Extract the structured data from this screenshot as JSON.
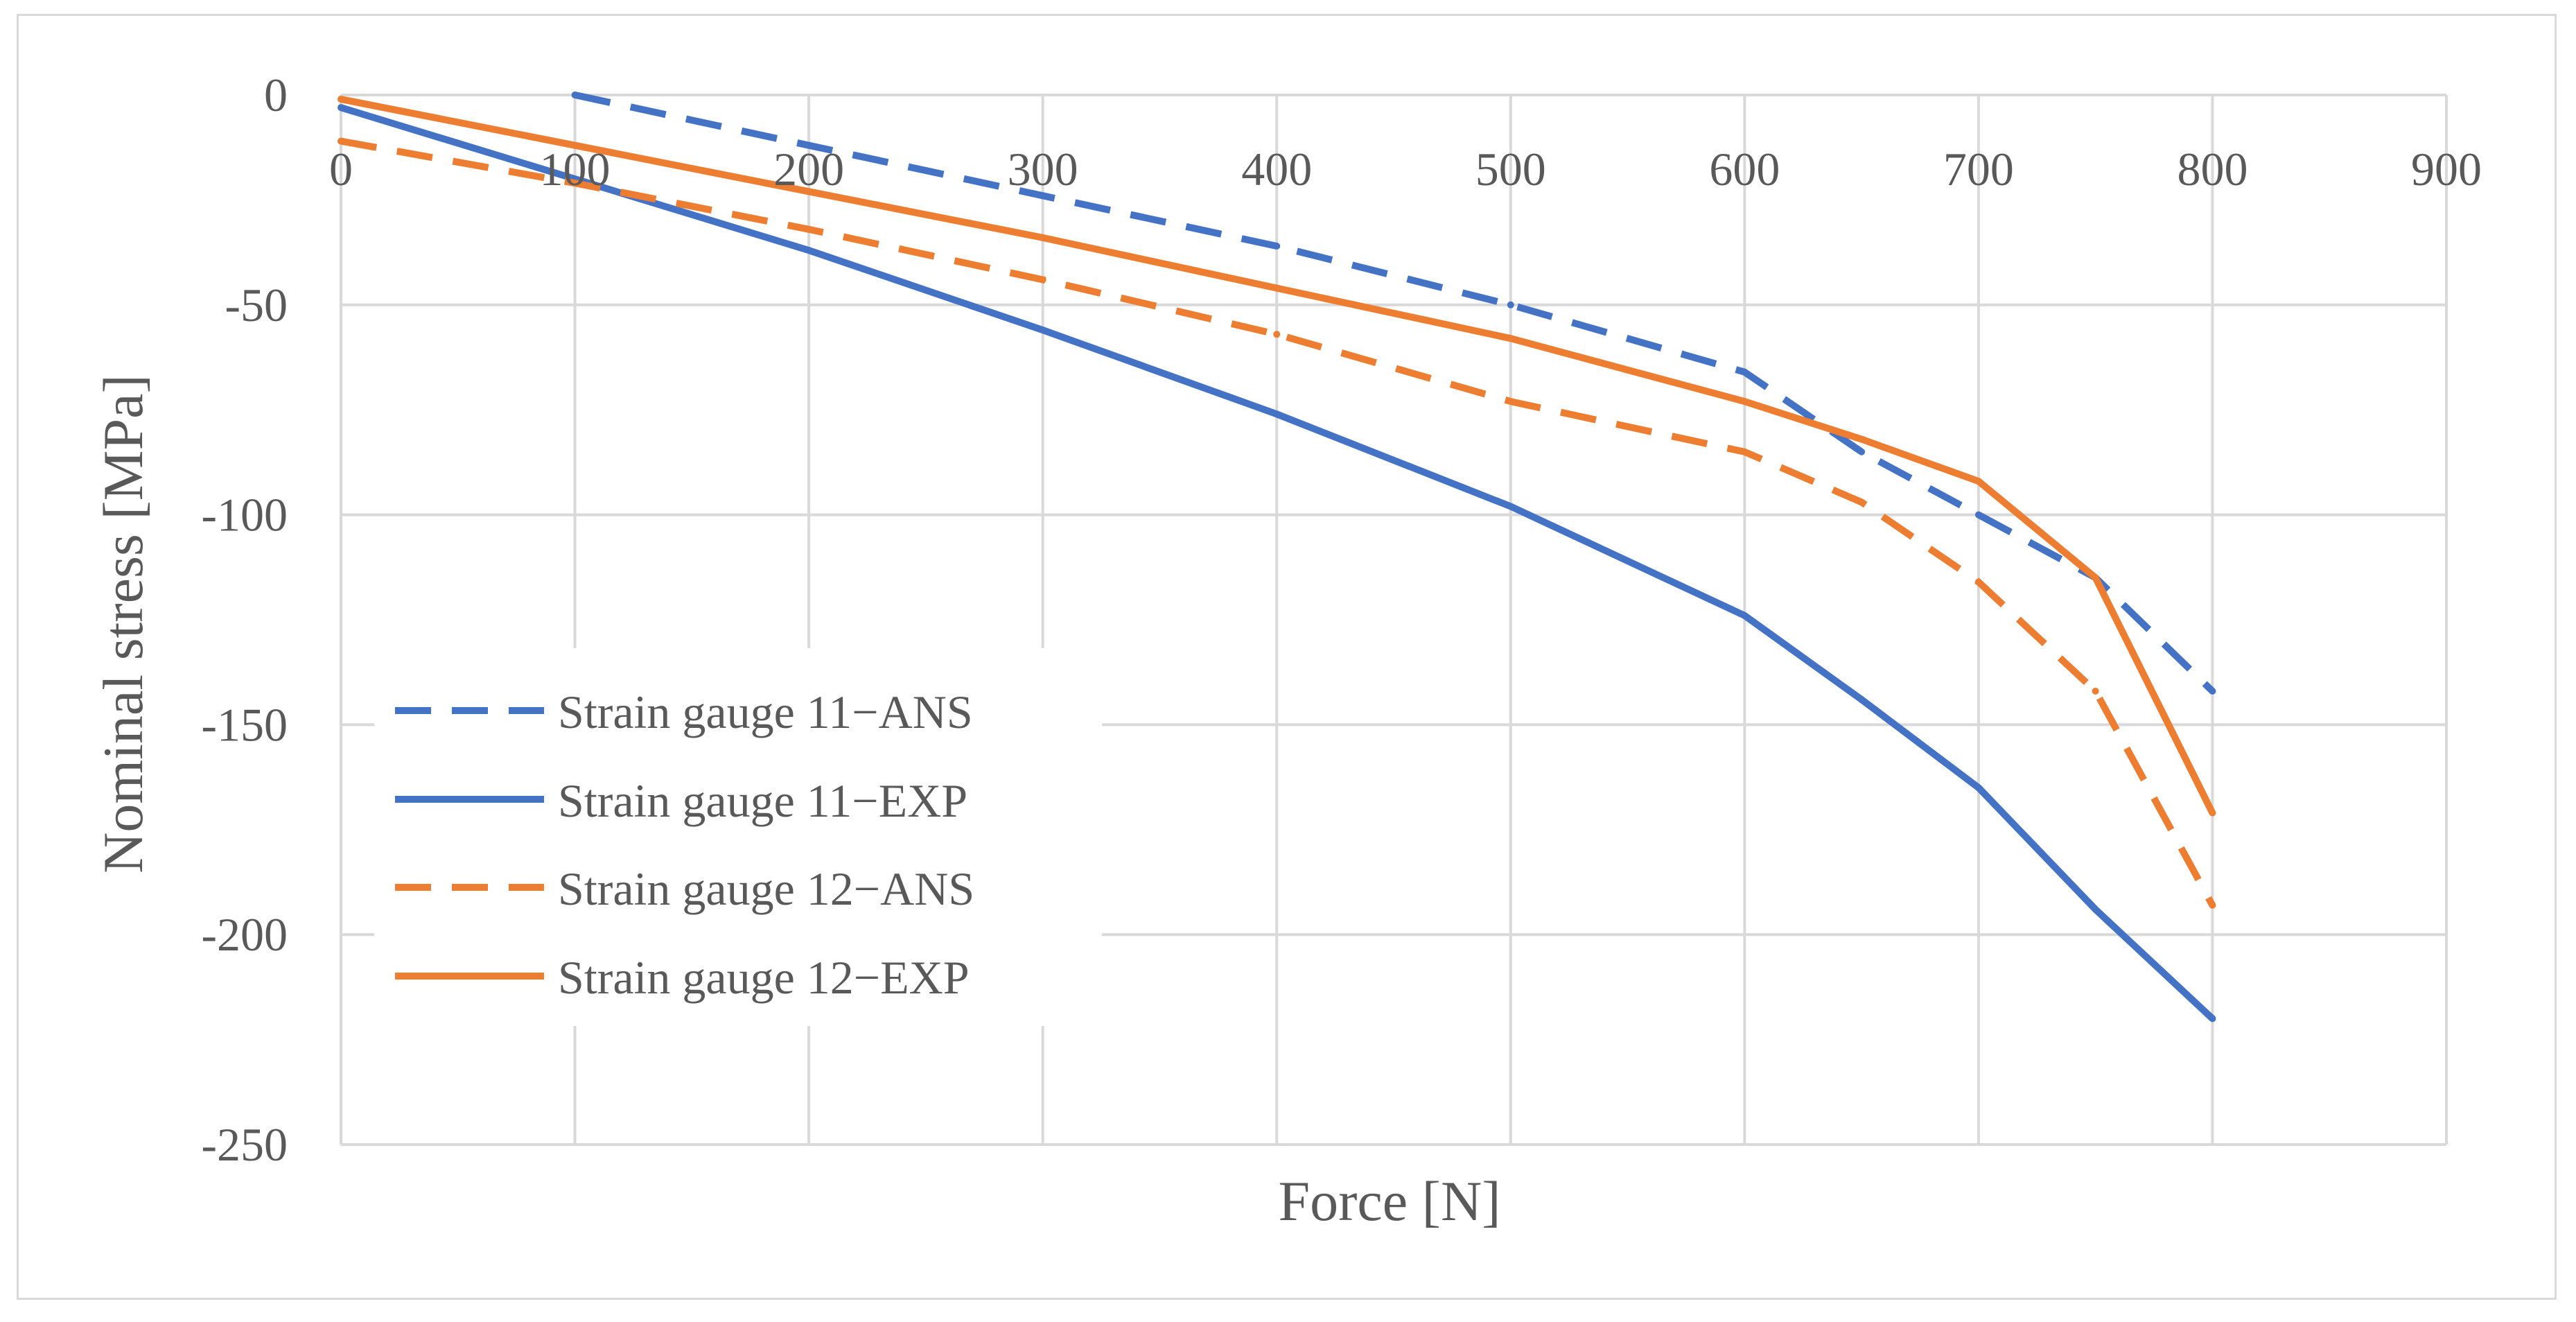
{
  "chart_data": {
    "type": "line",
    "title": "",
    "xlabel": "Force [N]",
    "ylabel": "Nominal stress [MPa]",
    "xlim": [
      0,
      900
    ],
    "ylim": [
      -250,
      0
    ],
    "xticks": [
      0,
      100,
      200,
      300,
      400,
      500,
      600,
      700,
      800,
      900
    ],
    "yticks": [
      0,
      -50,
      -100,
      -150,
      -200,
      -250
    ],
    "xtick_labels": [
      "0",
      "100",
      "200",
      "300",
      "400",
      "500",
      "600",
      "700",
      "800",
      "900"
    ],
    "ytick_labels": [
      "0",
      "-50",
      "-100",
      "-150",
      "-200",
      "-250"
    ],
    "grid": true,
    "legend_position": "left",
    "series": [
      {
        "name": "Strain gauge 11−ANS",
        "color": "#4472C4",
        "dash": "dashed",
        "x": [
          100,
          200,
          300,
          400,
          500,
          600,
          650,
          700,
          750,
          800
        ],
        "y": [
          0,
          -12,
          -24,
          -36,
          -50,
          -66,
          -85,
          -100,
          -115,
          -142
        ]
      },
      {
        "name": "Strain gauge 11−EXP",
        "color": "#4472C4",
        "dash": "solid",
        "x": [
          0,
          100,
          200,
          300,
          400,
          500,
          600,
          650,
          700,
          750,
          800
        ],
        "y": [
          -3,
          -20,
          -37,
          -56,
          -76,
          -98,
          -124,
          -144,
          -165,
          -194,
          -220
        ]
      },
      {
        "name": "Strain gauge 12−ANS",
        "color": "#ED7D31",
        "dash": "dashed",
        "x": [
          0,
          100,
          200,
          300,
          400,
          500,
          600,
          650,
          700,
          750,
          800
        ],
        "y": [
          -11,
          -21,
          -32,
          -44,
          -57,
          -73,
          -85,
          -97,
          -116,
          -142,
          -193
        ]
      },
      {
        "name": "Strain gauge 12−EXP",
        "color": "#ED7D31",
        "dash": "solid",
        "x": [
          0,
          100,
          200,
          300,
          400,
          500,
          600,
          650,
          700,
          750,
          800
        ],
        "y": [
          -1,
          -12,
          -23,
          -34,
          -46,
          -58,
          -73,
          -82,
          -92,
          -115,
          -171
        ]
      }
    ]
  }
}
